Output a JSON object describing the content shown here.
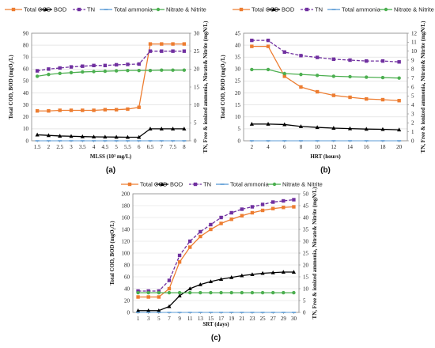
{
  "colors": {
    "total_cod": "#ED7D31",
    "bod": "#000000",
    "tn": "#7030A0",
    "total_ammonia": "#5B9BD5",
    "nitrate_nitrite": "#4CAF50"
  },
  "chart_data": [
    {
      "panel_label": "(a)",
      "type": "line",
      "xlabel": "MLSS (10³ mg/L)",
      "ylabel_left": "Total COD, BOD (mgO₂/L)",
      "ylabel_right": "TN, Free & ionized ammonia, Nitrate& Nitrite (mgN/L)",
      "x": [
        1.5,
        2,
        2.5,
        3,
        3.5,
        4,
        4.5,
        5,
        5.5,
        6,
        6.5,
        7,
        7.5,
        8
      ],
      "xticks": [
        "1.5",
        "2",
        "2.5",
        "3",
        "3.5",
        "4",
        "4.5",
        "5",
        "5.5",
        "6",
        "6.5",
        "7",
        "7.5",
        "8"
      ],
      "ylim_left": [
        0,
        90
      ],
      "yticks_left": [
        "0",
        "10",
        "20",
        "30",
        "40",
        "50",
        "60",
        "70",
        "80",
        "90"
      ],
      "ylim_right": [
        0,
        30
      ],
      "yticks_right": [
        "0",
        "5",
        "10",
        "15",
        "20",
        "25",
        "30"
      ],
      "grid": true,
      "legend": "top",
      "series": [
        {
          "name": "Total COD",
          "axis": "left",
          "style": "solid",
          "marker": "square",
          "values": [
            25,
            25,
            25.5,
            25.5,
            25.5,
            25.5,
            26,
            26,
            26.5,
            28,
            81,
            81,
            81,
            81
          ]
        },
        {
          "name": "BOD",
          "axis": "left",
          "style": "solid",
          "marker": "triangle",
          "values": [
            5,
            4.5,
            4,
            3.8,
            3.5,
            3.3,
            3.2,
            3.1,
            3,
            3,
            10,
            10,
            10,
            10
          ]
        },
        {
          "name": "TN",
          "axis": "right",
          "style": "dashed",
          "marker": "square",
          "values": [
            19.5,
            20,
            20.3,
            20.6,
            20.8,
            21,
            21,
            21.2,
            21.3,
            21.4,
            25,
            25,
            25,
            25
          ]
        },
        {
          "name": "Total ammonia",
          "axis": "right",
          "style": "solid",
          "marker": "dash",
          "values": [
            0,
            0,
            0,
            0,
            0,
            0,
            0,
            0,
            0,
            0,
            0,
            0,
            0,
            0
          ]
        },
        {
          "name": "Nitrate & Nitrite",
          "axis": "right",
          "style": "solid",
          "marker": "circle",
          "values": [
            18,
            18.5,
            18.8,
            19,
            19.2,
            19.3,
            19.4,
            19.5,
            19.6,
            19.6,
            19.6,
            19.7,
            19.7,
            19.7
          ]
        }
      ]
    },
    {
      "panel_label": "(b)",
      "type": "line",
      "xlabel": "HRT (hours)",
      "ylabel_left": "Total COD, BOD (mgO₂/L)",
      "ylabel_right": "TN, Free & ionized ammonia, Nitrate& Nitrite (mgN/L)",
      "x": [
        2,
        4,
        6,
        8,
        10,
        12,
        14,
        16,
        18,
        20
      ],
      "xticks": [
        "2",
        "4",
        "6",
        "8",
        "10",
        "12",
        "14",
        "16",
        "18",
        "20"
      ],
      "ylim_left": [
        0,
        45
      ],
      "yticks_left": [
        "0",
        "5",
        "10",
        "15",
        "20",
        "25",
        "30",
        "35",
        "40",
        "45"
      ],
      "ylim_right": [
        0,
        12
      ],
      "yticks_right": [
        "0",
        "1",
        "2",
        "3",
        "4",
        "5",
        "6",
        "7",
        "8",
        "9",
        "10",
        "11",
        "12"
      ],
      "grid": true,
      "legend": "top",
      "series": [
        {
          "name": "Total COD",
          "axis": "left",
          "style": "solid",
          "marker": "square",
          "values": [
            39.5,
            39.5,
            27,
            22.5,
            20.5,
            19,
            18.2,
            17.5,
            17.2,
            16.8
          ]
        },
        {
          "name": "BOD",
          "axis": "left",
          "style": "solid",
          "marker": "triangle",
          "values": [
            7,
            7,
            6.8,
            6,
            5.6,
            5.3,
            5.1,
            4.9,
            4.8,
            4.6
          ]
        },
        {
          "name": "TN",
          "axis": "right",
          "style": "dashed",
          "marker": "square",
          "values": [
            11.2,
            11.2,
            9.9,
            9.5,
            9.3,
            9.1,
            9.0,
            8.9,
            8.9,
            8.8
          ]
        },
        {
          "name": "Total ammonia",
          "axis": "right",
          "style": "solid",
          "marker": "dash",
          "values": [
            0,
            0,
            0,
            0,
            0,
            0,
            0,
            0,
            0,
            0
          ]
        },
        {
          "name": "Nitrate & Nitrite",
          "axis": "right",
          "style": "solid",
          "marker": "circle",
          "values": [
            7.95,
            7.95,
            7.5,
            7.4,
            7.3,
            7.2,
            7.15,
            7.1,
            7.05,
            7.0
          ]
        }
      ]
    },
    {
      "panel_label": "(c)",
      "type": "line",
      "xlabel": "SRT (days)",
      "ylabel_left": "Total COD, BOD (mgO₂/L)",
      "ylabel_right": "TN, Free & ionized ammonia, Nitrate& Nitrite (mgN/L)",
      "x": [
        1,
        3,
        5,
        7,
        9,
        11,
        13,
        15,
        17,
        19,
        21,
        23,
        25,
        27,
        29,
        30
      ],
      "xticks": [
        "1",
        "3",
        "5",
        "7",
        "9",
        "11",
        "13",
        "15",
        "17",
        "19",
        "21",
        "23",
        "25",
        "27",
        "29",
        "30"
      ],
      "ylim_left": [
        0,
        200
      ],
      "yticks_left": [
        "0",
        "20",
        "40",
        "60",
        "80",
        "100",
        "120",
        "140",
        "160",
        "180",
        "200"
      ],
      "ylim_right": [
        0,
        50
      ],
      "yticks_right": [
        "0",
        "5",
        "10",
        "15",
        "20",
        "25",
        "30",
        "35",
        "40",
        "45",
        "50"
      ],
      "grid": true,
      "legend": "top",
      "series": [
        {
          "name": "Total COD",
          "axis": "left",
          "style": "solid",
          "marker": "square",
          "values": [
            26,
            26,
            26,
            40,
            85,
            110,
            128,
            140,
            150,
            157,
            163,
            168,
            172,
            175,
            177,
            178
          ]
        },
        {
          "name": "BOD",
          "axis": "left",
          "style": "solid",
          "marker": "triangle",
          "values": [
            3,
            3,
            3,
            10,
            28,
            40,
            47,
            52,
            56,
            59,
            62,
            64,
            66,
            67,
            68,
            68
          ]
        },
        {
          "name": "TN",
          "axis": "right",
          "style": "dashed",
          "marker": "square",
          "values": [
            9,
            9,
            9,
            13.5,
            24,
            30,
            34,
            37,
            40,
            42,
            43.5,
            44.5,
            45.5,
            46.5,
            47,
            47.5
          ]
        },
        {
          "name": "Total ammonia",
          "axis": "right",
          "style": "solid",
          "marker": "dash",
          "values": [
            0,
            0,
            0,
            0,
            0,
            0,
            0,
            0,
            0,
            0,
            0,
            0,
            0,
            0,
            0,
            0
          ]
        },
        {
          "name": "Nitrate & Nitrite",
          "axis": "right",
          "style": "solid",
          "marker": "circle",
          "values": [
            8.3,
            8.3,
            8.3,
            8.3,
            8.3,
            8.3,
            8.3,
            8.3,
            8.3,
            8.3,
            8.3,
            8.3,
            8.3,
            8.3,
            8.3,
            8.3
          ]
        }
      ]
    }
  ]
}
